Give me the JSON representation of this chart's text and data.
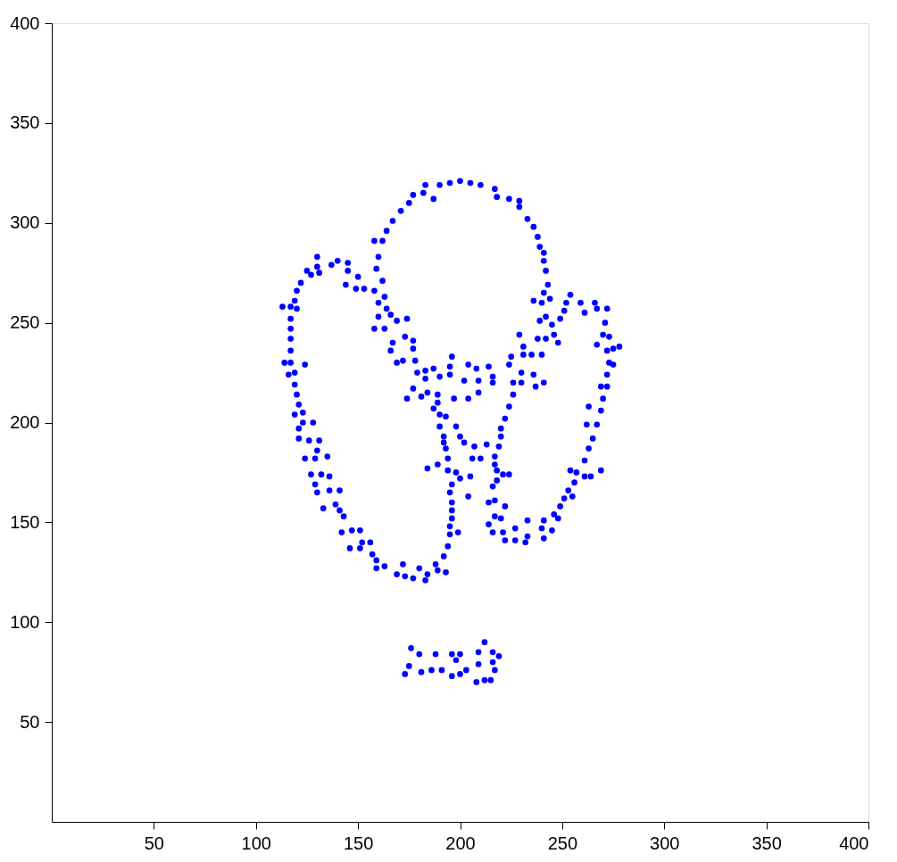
{
  "chart_data": {
    "type": "scatter",
    "xlim": [
      0,
      400
    ],
    "ylim": [
      0,
      400
    ],
    "xticks": [
      50,
      100,
      150,
      200,
      250,
      300,
      350,
      400
    ],
    "yticks": [
      50,
      100,
      150,
      200,
      250,
      300,
      350,
      400
    ],
    "grid": false,
    "legend": false,
    "marker": "circle",
    "series": [
      {
        "color": "#0000ff",
        "x": [
          183,
          190,
          195,
          177,
          182,
          187,
          175,
          171,
          167,
          164,
          158,
          162,
          130,
          160,
          140,
          137,
          145,
          130,
          125,
          145,
          127,
          131,
          159,
          150,
          122,
          162,
          144,
          149,
          153,
          158,
          120,
          163,
          119,
          160,
          113,
          117,
          120,
          164,
          166,
          160,
          169,
          174,
          117,
          117,
          158,
          163,
          117,
          173,
          177,
          167,
          200,
          205,
          210,
          217,
          218,
          224,
          229,
          229,
          233,
          236,
          238,
          239,
          241,
          241,
          242,
          243,
          241,
          244,
          236,
          240,
          254,
          252,
          259,
          266,
          267,
          272,
          261,
          251,
          242,
          239,
          249,
          245,
          271,
          229,
          238,
          242,
          246,
          248,
          270,
          273,
          117,
          114,
          117,
          124,
          116,
          119,
          119,
          120,
          121,
          119,
          123,
          123,
          128,
          121,
          121,
          126,
          131,
          130,
          124,
          129,
          135,
          127,
          132,
          136,
          129,
          130,
          136,
          141,
          133,
          139,
          141,
          143,
          166,
          177,
          169,
          172,
          178,
          179,
          183,
          187,
          183,
          190,
          177,
          174,
          181,
          184,
          189,
          189,
          187,
          190,
          193,
          190,
          192,
          192,
          193,
          194,
          189,
          184,
          194,
          196,
          195,
          195,
          204,
          208,
          214,
          216,
          216,
          202,
          209,
          209,
          197,
          204,
          231,
          231,
          235,
          240,
          225,
          224,
          230,
          236,
          226,
          230,
          237,
          241,
          226,
          224,
          222,
          220,
          220,
          219,
          198,
          200,
          202,
          207,
          213,
          206,
          210,
          217,
          217,
          218,
          221,
          224,
          198,
          200,
          205,
          196,
          195,
          204,
          196,
          196,
          196,
          218,
          216,
          214,
          217,
          222,
          217,
          220,
          267,
          272,
          275,
          278,
          273,
          275,
          272,
          269,
          272,
          270,
          263,
          269,
          262,
          267,
          265,
          263,
          261,
          254,
          257,
          261,
          264,
          269,
          256,
          253,
          255,
          251,
          249,
          246,
          248,
          142,
          147,
          151,
          152,
          156,
          146,
          151,
          157,
          159,
          159,
          163,
          169,
          172,
          173,
          177,
          180,
          184,
          183,
          188,
          189,
          193,
          192,
          194,
          176,
          180,
          188,
          175,
          173,
          181,
          186,
          191,
          195,
          195,
          199,
          214,
          216,
          221,
          222,
          227,
          227,
          232,
          233,
          233,
          241,
          240,
          245,
          241,
          212,
          196,
          200,
          198,
          209,
          216,
          219,
          209,
          216,
          217,
          196,
          200,
          203,
          208,
          212,
          215
        ],
        "values": [
          319,
          319,
          320,
          314,
          315,
          312,
          310,
          306,
          301,
          296,
          291,
          291,
          283,
          283,
          281,
          279,
          280,
          278,
          276,
          276,
          274,
          275,
          277,
          273,
          270,
          271,
          269,
          267,
          267,
          266,
          266,
          263,
          261,
          260,
          258,
          258,
          257,
          257,
          254,
          253,
          251,
          252,
          252,
          247,
          247,
          247,
          242,
          243,
          241,
          240,
          321,
          320,
          319,
          317,
          313,
          312,
          311,
          308,
          302,
          298,
          293,
          288,
          285,
          281,
          276,
          269,
          265,
          262,
          261,
          260,
          264,
          260,
          260,
          260,
          257,
          257,
          255,
          256,
          253,
          251,
          252,
          249,
          250,
          244,
          242,
          242,
          244,
          240,
          244,
          243,
          236,
          230,
          230,
          229,
          224,
          225,
          219,
          214,
          209,
          204,
          205,
          200,
          200,
          197,
          192,
          191,
          191,
          186,
          182,
          182,
          183,
          174,
          174,
          173,
          169,
          165,
          166,
          166,
          157,
          159,
          156,
          153,
          236,
          237,
          230,
          231,
          231,
          225,
          226,
          227,
          222,
          223,
          217,
          212,
          213,
          215,
          214,
          210,
          207,
          204,
          203,
          198,
          193,
          190,
          187,
          182,
          179,
          177,
          176,
          233,
          228,
          224,
          229,
          227,
          228,
          223,
          220,
          221,
          221,
          215,
          212,
          212,
          238,
          234,
          234,
          234,
          233,
          229,
          225,
          224,
          220,
          220,
          218,
          220,
          214,
          208,
          202,
          197,
          193,
          188,
          198,
          193,
          190,
          188,
          189,
          182,
          182,
          183,
          179,
          176,
          174,
          174,
          175,
          172,
          173,
          169,
          165,
          163,
          160,
          156,
          152,
          171,
          168,
          160,
          161,
          158,
          153,
          152,
          239,
          236,
          237,
          238,
          230,
          229,
          224,
          218,
          218,
          212,
          208,
          206,
          199,
          199,
          192,
          187,
          181,
          176,
          175,
          173,
          173,
          176,
          170,
          166,
          163,
          162,
          158,
          154,
          152,
          145,
          146,
          146,
          140,
          140,
          137,
          137,
          134,
          131,
          127,
          128,
          124,
          129,
          123,
          122,
          127,
          124,
          121,
          129,
          126,
          125,
          133,
          138,
          87,
          84,
          84,
          78,
          74,
          75,
          76,
          76,
          148,
          144,
          145,
          149,
          145,
          145,
          141,
          147,
          141,
          140,
          151,
          143,
          151,
          147,
          146,
          142,
          90,
          84,
          84,
          81,
          85,
          85,
          83,
          79,
          80,
          76,
          73,
          74,
          76,
          70,
          71,
          71
        ]
      }
    ]
  }
}
